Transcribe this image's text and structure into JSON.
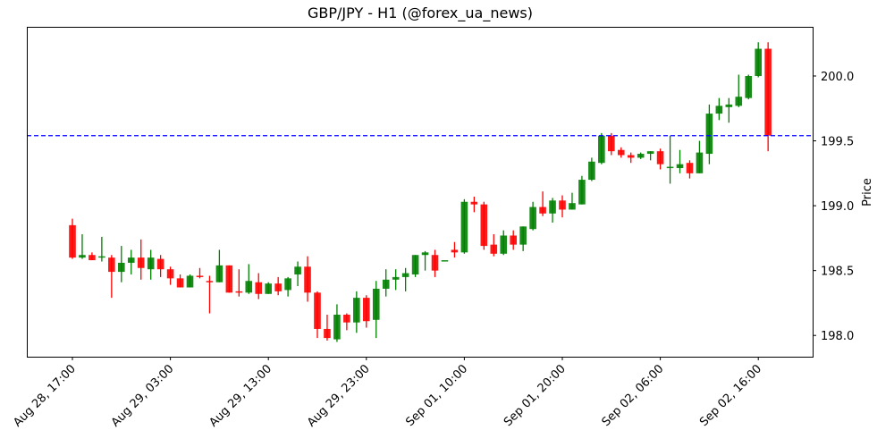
{
  "chart_data": {
    "type": "candlestick",
    "title": "GBP/JPY - H1 (@forex_ua_news)",
    "xlabel": "",
    "ylabel": "Price",
    "ylim": [
      197.82,
      200.37
    ],
    "yticks": [
      198.0,
      198.5,
      199.0,
      199.5,
      200.0
    ],
    "ytick_labels": [
      "198.0",
      "198.5",
      "199.0",
      "199.5",
      "200.0"
    ],
    "xtick_labels": [
      "Aug 28, 17:00",
      "Aug 29, 03:00",
      "Aug 29, 13:00",
      "Aug 29, 23:00",
      "Sep 01, 10:00",
      "Sep 01, 20:00",
      "Sep 02, 06:00",
      "Sep 02, 16:00"
    ],
    "xtick_indices": [
      0,
      10,
      20,
      30,
      40,
      50,
      60,
      70
    ],
    "grid": false,
    "legend": null,
    "hline": {
      "value": 199.54,
      "color": "#0000ff",
      "style": "dashed"
    },
    "colors": {
      "up": "#008000",
      "down": "#ff0000"
    },
    "ohlc": [
      {
        "o": 198.85,
        "h": 198.9,
        "l": 198.59,
        "c": 198.6
      },
      {
        "o": 198.6,
        "h": 198.78,
        "l": 198.59,
        "c": 198.62
      },
      {
        "o": 198.62,
        "h": 198.64,
        "l": 198.59,
        "c": 198.58
      },
      {
        "o": 198.6,
        "h": 198.76,
        "l": 198.57,
        "c": 198.61
      },
      {
        "o": 198.6,
        "h": 198.62,
        "l": 198.29,
        "c": 198.49
      },
      {
        "o": 198.49,
        "h": 198.69,
        "l": 198.41,
        "c": 198.56
      },
      {
        "o": 198.56,
        "h": 198.66,
        "l": 198.47,
        "c": 198.6
      },
      {
        "o": 198.6,
        "h": 198.74,
        "l": 198.43,
        "c": 198.52
      },
      {
        "o": 198.51,
        "h": 198.66,
        "l": 198.43,
        "c": 198.6
      },
      {
        "o": 198.59,
        "h": 198.62,
        "l": 198.45,
        "c": 198.51
      },
      {
        "o": 198.51,
        "h": 198.53,
        "l": 198.39,
        "c": 198.44
      },
      {
        "o": 198.44,
        "h": 198.47,
        "l": 198.42,
        "c": 198.37
      },
      {
        "o": 198.37,
        "h": 198.47,
        "l": 198.37,
        "c": 198.46
      },
      {
        "o": 198.46,
        "h": 198.52,
        "l": 198.44,
        "c": 198.45
      },
      {
        "o": 198.42,
        "h": 198.46,
        "l": 198.17,
        "c": 198.41
      },
      {
        "o": 198.41,
        "h": 198.66,
        "l": 198.43,
        "c": 198.54
      },
      {
        "o": 198.54,
        "h": 198.54,
        "l": 198.33,
        "c": 198.33
      },
      {
        "o": 198.34,
        "h": 198.51,
        "l": 198.3,
        "c": 198.33
      },
      {
        "o": 198.33,
        "h": 198.55,
        "l": 198.32,
        "c": 198.42
      },
      {
        "o": 198.41,
        "h": 198.48,
        "l": 198.28,
        "c": 198.32
      },
      {
        "o": 198.32,
        "h": 198.41,
        "l": 198.32,
        "c": 198.4
      },
      {
        "o": 198.4,
        "h": 198.45,
        "l": 198.31,
        "c": 198.34
      },
      {
        "o": 198.35,
        "h": 198.45,
        "l": 198.3,
        "c": 198.44
      },
      {
        "o": 198.47,
        "h": 198.57,
        "l": 198.38,
        "c": 198.53
      },
      {
        "o": 198.53,
        "h": 198.61,
        "l": 198.26,
        "c": 198.33
      },
      {
        "o": 198.33,
        "h": 198.34,
        "l": 197.98,
        "c": 198.05
      },
      {
        "o": 198.05,
        "h": 198.16,
        "l": 197.96,
        "c": 197.98
      },
      {
        "o": 197.97,
        "h": 198.24,
        "l": 197.95,
        "c": 198.16
      },
      {
        "o": 198.16,
        "h": 198.17,
        "l": 198.04,
        "c": 198.1
      },
      {
        "o": 198.1,
        "h": 198.34,
        "l": 198.02,
        "c": 198.29
      },
      {
        "o": 198.29,
        "h": 198.31,
        "l": 198.06,
        "c": 198.11
      },
      {
        "o": 198.12,
        "h": 198.42,
        "l": 197.98,
        "c": 198.36
      },
      {
        "o": 198.36,
        "h": 198.51,
        "l": 198.3,
        "c": 198.43
      },
      {
        "o": 198.43,
        "h": 198.51,
        "l": 198.35,
        "c": 198.45
      },
      {
        "o": 198.45,
        "h": 198.52,
        "l": 198.34,
        "c": 198.48
      },
      {
        "o": 198.47,
        "h": 198.62,
        "l": 198.45,
        "c": 198.62
      },
      {
        "o": 198.62,
        "h": 198.65,
        "l": 198.5,
        "c": 198.64
      },
      {
        "o": 198.62,
        "h": 198.66,
        "l": 198.45,
        "c": 198.5
      },
      {
        "o": 198.58,
        "h": 198.58,
        "l": 198.58,
        "c": 198.58
      },
      {
        "o": 198.66,
        "h": 198.72,
        "l": 198.6,
        "c": 198.64
      },
      {
        "o": 198.64,
        "h": 199.05,
        "l": 198.63,
        "c": 199.03
      },
      {
        "o": 199.03,
        "h": 199.07,
        "l": 198.95,
        "c": 199.01
      },
      {
        "o": 199.01,
        "h": 199.03,
        "l": 198.66,
        "c": 198.69
      },
      {
        "o": 198.7,
        "h": 198.78,
        "l": 198.61,
        "c": 198.63
      },
      {
        "o": 198.63,
        "h": 198.81,
        "l": 198.62,
        "c": 198.77
      },
      {
        "o": 198.77,
        "h": 198.81,
        "l": 198.66,
        "c": 198.7
      },
      {
        "o": 198.7,
        "h": 198.84,
        "l": 198.65,
        "c": 198.84
      },
      {
        "o": 198.82,
        "h": 199.03,
        "l": 198.81,
        "c": 198.99
      },
      {
        "o": 198.99,
        "h": 199.11,
        "l": 198.92,
        "c": 198.94
      },
      {
        "o": 198.94,
        "h": 199.06,
        "l": 198.87,
        "c": 199.04
      },
      {
        "o": 199.04,
        "h": 199.08,
        "l": 198.91,
        "c": 198.97
      },
      {
        "o": 198.97,
        "h": 199.1,
        "l": 198.97,
        "c": 199.02
      },
      {
        "o": 199.01,
        "h": 199.23,
        "l": 199.01,
        "c": 199.2
      },
      {
        "o": 199.2,
        "h": 199.37,
        "l": 199.19,
        "c": 199.34
      },
      {
        "o": 199.33,
        "h": 199.56,
        "l": 199.32,
        "c": 199.54
      },
      {
        "o": 199.54,
        "h": 199.56,
        "l": 199.39,
        "c": 199.42
      },
      {
        "o": 199.43,
        "h": 199.45,
        "l": 199.37,
        "c": 199.39
      },
      {
        "o": 199.39,
        "h": 199.41,
        "l": 199.33,
        "c": 199.37
      },
      {
        "o": 199.37,
        "h": 199.41,
        "l": 199.36,
        "c": 199.4
      },
      {
        "o": 199.4,
        "h": 199.42,
        "l": 199.35,
        "c": 199.42
      },
      {
        "o": 199.42,
        "h": 199.44,
        "l": 199.28,
        "c": 199.32
      },
      {
        "o": 199.29,
        "h": 199.54,
        "l": 199.17,
        "c": 199.3
      },
      {
        "o": 199.29,
        "h": 199.43,
        "l": 199.25,
        "c": 199.32
      },
      {
        "o": 199.33,
        "h": 199.35,
        "l": 199.21,
        "c": 199.25
      },
      {
        "o": 199.25,
        "h": 199.5,
        "l": 199.25,
        "c": 199.41
      },
      {
        "o": 199.4,
        "h": 199.78,
        "l": 199.32,
        "c": 199.71
      },
      {
        "o": 199.71,
        "h": 199.83,
        "l": 199.66,
        "c": 199.77
      },
      {
        "o": 199.76,
        "h": 199.83,
        "l": 199.64,
        "c": 199.78
      },
      {
        "o": 199.77,
        "h": 200.01,
        "l": 199.76,
        "c": 199.84
      },
      {
        "o": 199.83,
        "h": 200.01,
        "l": 199.82,
        "c": 200.0
      },
      {
        "o": 200.0,
        "h": 200.26,
        "l": 199.99,
        "c": 200.21
      },
      {
        "o": 200.21,
        "h": 200.26,
        "l": 199.42,
        "c": 199.54
      }
    ]
  }
}
